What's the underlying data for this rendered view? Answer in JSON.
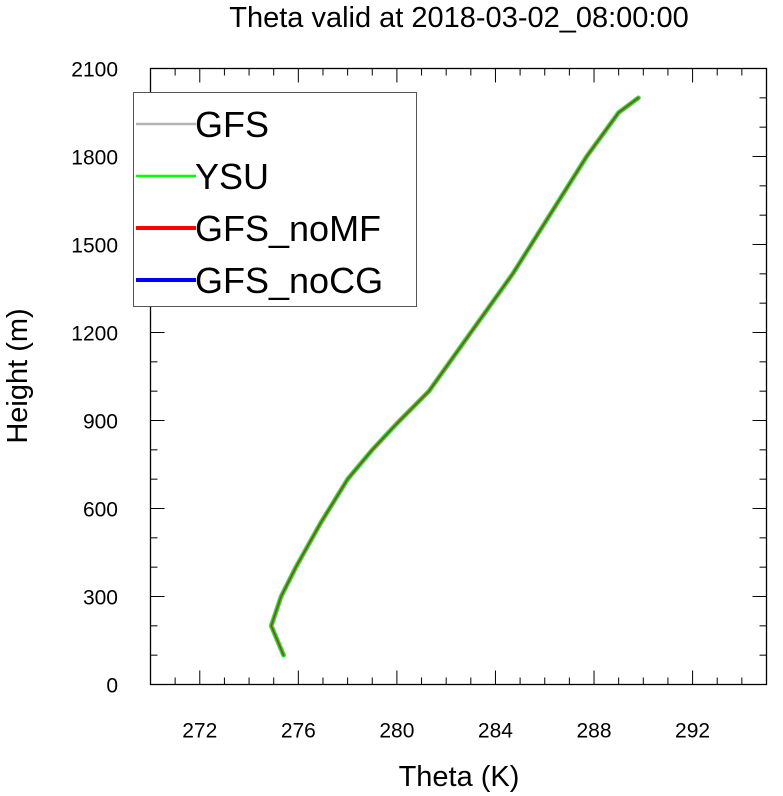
{
  "chart_data": {
    "type": "line",
    "title": "Theta valid at 2018-03-02_08:00:00",
    "xlabel": "Theta (K)",
    "ylabel": "Height (m)",
    "xlim": [
      270,
      295
    ],
    "ylim": [
      0,
      2100
    ],
    "xticks": [
      272,
      276,
      280,
      284,
      288,
      292
    ],
    "yticks": [
      0,
      300,
      600,
      900,
      1200,
      1500,
      1800,
      2100
    ],
    "grid": false,
    "legend_position": "top-left",
    "series": [
      {
        "name": "GFS",
        "color": "#b5b5b5",
        "x": [
          275.4,
          274.9,
          275.3,
          275.9,
          276.9,
          278.0,
          279.0,
          280.0,
          281.3,
          283.0,
          284.7,
          286.2,
          287.7,
          289.0,
          289.8
        ],
        "y": [
          100,
          200,
          300,
          400,
          550,
          700,
          800,
          890,
          1000,
          1200,
          1400,
          1600,
          1800,
          1950,
          2000
        ]
      },
      {
        "name": "YSU",
        "color": "#00ff00",
        "x": [
          275.4,
          274.9,
          275.3,
          275.9,
          276.9,
          278.0,
          279.0,
          280.0,
          281.3,
          283.0,
          284.7,
          286.2,
          287.7,
          289.0,
          289.8
        ],
        "y": [
          100,
          200,
          300,
          400,
          550,
          700,
          800,
          890,
          1000,
          1200,
          1400,
          1600,
          1800,
          1950,
          2000
        ]
      },
      {
        "name": "GFS_noMF",
        "color": "#ff0000",
        "x": [
          275.4,
          274.9,
          275.3,
          275.9,
          276.9,
          278.0,
          279.0,
          280.0,
          281.3,
          283.0,
          284.7,
          286.2,
          287.7,
          289.0,
          289.8
        ],
        "y": [
          100,
          200,
          300,
          400,
          550,
          700,
          800,
          890,
          1000,
          1200,
          1400,
          1600,
          1800,
          1950,
          2000
        ]
      },
      {
        "name": "GFS_noCG",
        "color": "#0000ff",
        "x": [
          275.4,
          274.9,
          275.3,
          275.9,
          276.9,
          278.0,
          279.0,
          280.0,
          281.3,
          283.0,
          284.7,
          286.2,
          287.7,
          289.0,
          289.8
        ],
        "y": [
          100,
          200,
          300,
          400,
          550,
          700,
          800,
          890,
          1000,
          1200,
          1400,
          1600,
          1800,
          1950,
          2000
        ]
      }
    ]
  }
}
